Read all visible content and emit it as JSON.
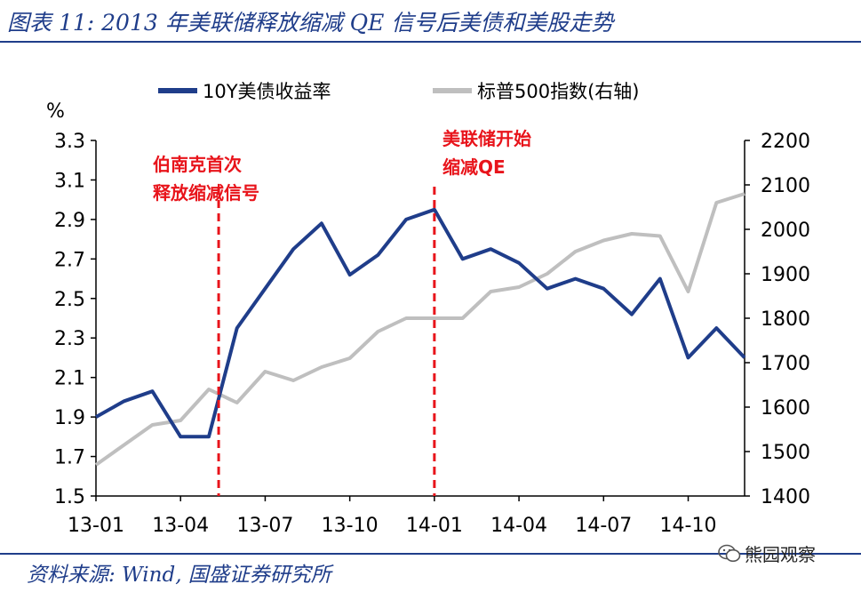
{
  "header": {
    "title": "图表 11:  2013 年美联储释放缩减 QE 信号后美债和美股走势"
  },
  "footer": {
    "source": "资料来源:  Wind,  国盛证券研究所",
    "watermark": "熊园观察"
  },
  "chart_data": {
    "type": "line",
    "ylabel_left": "%",
    "ylim_left": [
      1.5,
      3.3
    ],
    "yticks_left": [
      "3.3",
      "3.1",
      "2.9",
      "2.7",
      "2.5",
      "2.3",
      "2.1",
      "1.9",
      "1.7",
      "1.5"
    ],
    "ylim_right": [
      1400,
      2200
    ],
    "yticks_right": [
      "2200",
      "2100",
      "2000",
      "1900",
      "1800",
      "1700",
      "1600",
      "1500",
      "1400"
    ],
    "x_ticks": [
      "13-01",
      "13-04",
      "13-07",
      "13-10",
      "14-01",
      "14-04",
      "14-07",
      "14-10"
    ],
    "x": [
      "13-01",
      "13-02",
      "13-03",
      "13-04",
      "13-05",
      "13-06",
      "13-07",
      "13-08",
      "13-09",
      "13-10",
      "13-11",
      "13-12",
      "14-01",
      "14-02",
      "14-03",
      "14-04",
      "14-05",
      "14-06",
      "14-07",
      "14-08",
      "14-09",
      "14-10",
      "14-11",
      "14-12"
    ],
    "series": [
      {
        "name": "10Y美债收益率",
        "axis": "left",
        "color": "#1f3d8a",
        "values": [
          1.9,
          1.98,
          2.03,
          1.8,
          1.8,
          2.35,
          2.55,
          2.75,
          2.88,
          2.62,
          2.72,
          2.9,
          2.95,
          2.7,
          2.75,
          2.68,
          2.55,
          2.6,
          2.55,
          2.42,
          2.6,
          2.2,
          2.35,
          2.2
        ]
      },
      {
        "name": "标普500指数(右轴)",
        "axis": "right",
        "color": "#bfbfbf",
        "values": [
          1470,
          1515,
          1560,
          1570,
          1640,
          1610,
          1680,
          1660,
          1690,
          1710,
          1770,
          1800,
          1800,
          1800,
          1860,
          1870,
          1900,
          1950,
          1975,
          1990,
          1985,
          1860,
          2060,
          2080
        ]
      }
    ],
    "annotations": [
      {
        "text_line1": "伯南克首次",
        "text_line2": "释放缩减信号",
        "x": "13-05",
        "color": "#e8141b"
      },
      {
        "text_line1": "美联储开始",
        "text_line2": "缩减QE",
        "x": "14-01",
        "color": "#e8141b"
      }
    ],
    "legend": "top",
    "grid": false
  }
}
